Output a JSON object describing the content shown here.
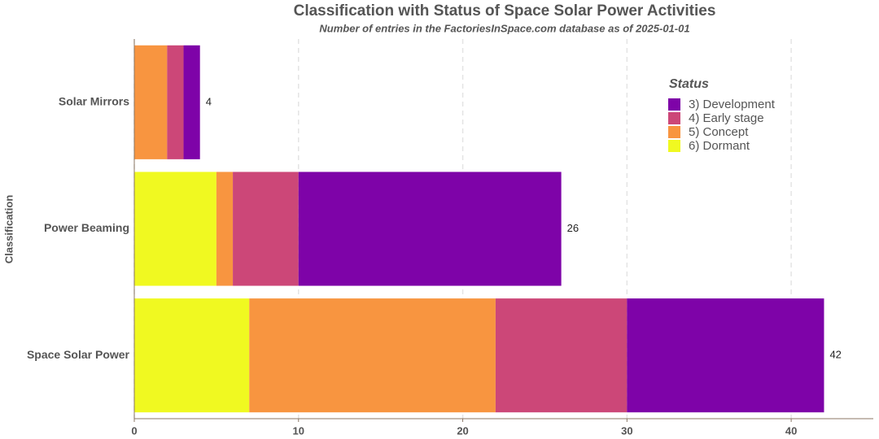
{
  "chart_data": {
    "type": "stacked-barh",
    "title": "Classification with Status of Space Solar Power Activities",
    "subtitle": "Number of entries in the FactoriesInSpace.com database as of 2025-01-01",
    "y_label": "Classification",
    "legend_title": "Status",
    "legend": "top-right",
    "grid": true,
    "categories": [
      "Solar Mirrors",
      "Power Beaming",
      "Space Solar Power"
    ],
    "series": [
      {
        "name": "3) Development",
        "color": "#7e03a8",
        "values": [
          1,
          16,
          12
        ]
      },
      {
        "name": "4) Early stage",
        "color": "#cc4778",
        "values": [
          1,
          4,
          8
        ]
      },
      {
        "name": "5) Concept",
        "color": "#f89540",
        "values": [
          2,
          1,
          15
        ]
      },
      {
        "name": "6) Dormant",
        "color": "#f0f921",
        "values": [
          0,
          5,
          7
        ]
      }
    ],
    "totals": [
      4,
      26,
      42
    ],
    "xlim": [
      0,
      45
    ],
    "xticks": [
      0,
      10,
      20,
      30,
      40
    ]
  }
}
